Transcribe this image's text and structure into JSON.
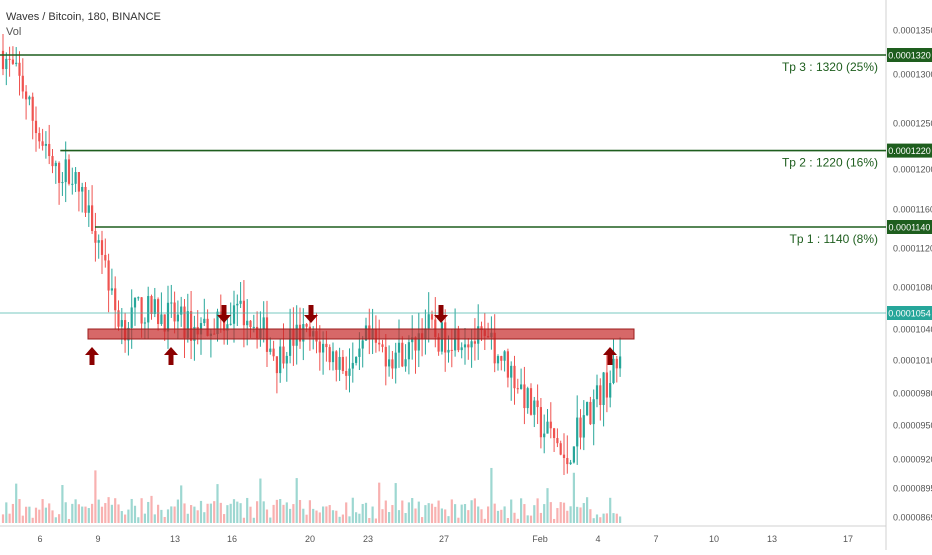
{
  "header": {
    "symbol_line": "Waves / Bitcoin, 180, BINANCE",
    "volume_label": "Vol"
  },
  "colors": {
    "up": "#26a69a",
    "down": "#ef5350",
    "target_line": "#1e5e1e",
    "zone": "#c62828",
    "arrow": "#8b0000",
    "price_line": "#4db6ac"
  },
  "chart_data": {
    "type": "candlestick",
    "ylim": [
      8.65e-05,
      0.000138
    ],
    "y_ticks": [
      "0.0001350",
      "0.0001300",
      "0.0001250",
      "0.0001200",
      "0.0001160",
      "0.0001120",
      "0.0001080",
      "0.0001040",
      "0.0001010",
      "0.0000980",
      "0.0000950",
      "0.0000920",
      "0.0000895",
      "0.0000869"
    ],
    "x_ticks": [
      "6",
      "9",
      "13",
      "16",
      "20",
      "23",
      "27",
      "Feb",
      "4",
      "7",
      "10",
      "13",
      "17"
    ],
    "price_path": [
      [
        0,
        0.0001325
      ],
      [
        1.2,
        0.000129
      ],
      [
        2.2,
        0.000123
      ],
      [
        3.0,
        0.0001195
      ],
      [
        3.8,
        0.00012
      ],
      [
        4.5,
        0.000117
      ],
      [
        5.0,
        0.000115
      ],
      [
        5.6,
        0.000112
      ],
      [
        6.2,
        0.000106
      ],
      [
        6.8,
        0.0001042
      ],
      [
        7.5,
        0.0001058
      ],
      [
        8.5,
        0.0001055
      ],
      [
        9.5,
        0.000105
      ],
      [
        10.5,
        0.000104
      ],
      [
        11.5,
        0.0001045
      ],
      [
        12.5,
        0.0001052
      ],
      [
        13.5,
        0.0001055
      ],
      [
        14.5,
        0.0001035
      ],
      [
        15.2,
        0.000101
      ],
      [
        15.7,
        0.0001028
      ],
      [
        16.5,
        0.0001035
      ],
      [
        17.5,
        0.0001025
      ],
      [
        18.5,
        0.000101
      ],
      [
        19.5,
        9.98e-05
      ],
      [
        20.0,
        0.000103
      ],
      [
        20.8,
        0.000102
      ],
      [
        21.5,
        0.0001015
      ],
      [
        22.5,
        0.000102
      ],
      [
        23.2,
        0.0001045
      ],
      [
        24.0,
        0.000103
      ],
      [
        25.0,
        0.0001035
      ],
      [
        26.0,
        0.000103
      ],
      [
        27.0,
        0.0001022
      ],
      [
        27.8,
        0.0001005
      ],
      [
        28.5,
        9.85e-05
      ],
      [
        29.2,
        9.6e-05
      ],
      [
        29.8,
        9.45e-05
      ],
      [
        30.5,
        9.35e-05
      ],
      [
        30.9,
        9.1e-05
      ],
      [
        31.5,
        9.45e-05
      ],
      [
        32.3,
        9.65e-05
      ],
      [
        33.0,
        9.85e-05
      ],
      [
        33.8,
        0.0001002
      ],
      [
        34.3,
        0.000103
      ],
      [
        34.8,
        0.000105
      ],
      [
        35.3,
        0.000107
      ],
      [
        35.8,
        0.000106
      ],
      [
        36.5,
        0.0001052
      ],
      [
        36.8,
        0.0001054
      ]
    ],
    "volume_cap": 1.0,
    "horizontal_levels": [
      {
        "label": "Tp 3 : 1320 (25%)",
        "value": 0.000132,
        "tag": "0.0001320",
        "x_start": 0
      },
      {
        "label": "Tp 2 : 1220 (16%)",
        "value": 0.000122,
        "tag": "0.0001220",
        "x_start": 3.3
      },
      {
        "label": "Tp 1 : 1140 (8%)",
        "value": 0.000114,
        "tag": "0.0001140",
        "x_start": 5.2
      }
    ],
    "current_price": {
      "value": 0.0001054,
      "tag": "0.0001054"
    },
    "support_zone": {
      "y_top": 0.0001046,
      "y_bottom": 0.0001037,
      "x_start": 6.6,
      "x_end": 37.5
    },
    "arrows_up": [
      7.0,
      10.8,
      34.9
    ],
    "arrows_down": [
      12.9,
      17.9,
      25.7
    ],
    "x_range": [
      0,
      48.5
    ],
    "x_tick_positions": [
      2.0,
      5.6,
      10.2,
      13.6,
      18.2,
      21.6,
      26.2,
      31.4,
      35.1,
      38.6,
      42.0,
      45.4,
      50.1
    ]
  }
}
